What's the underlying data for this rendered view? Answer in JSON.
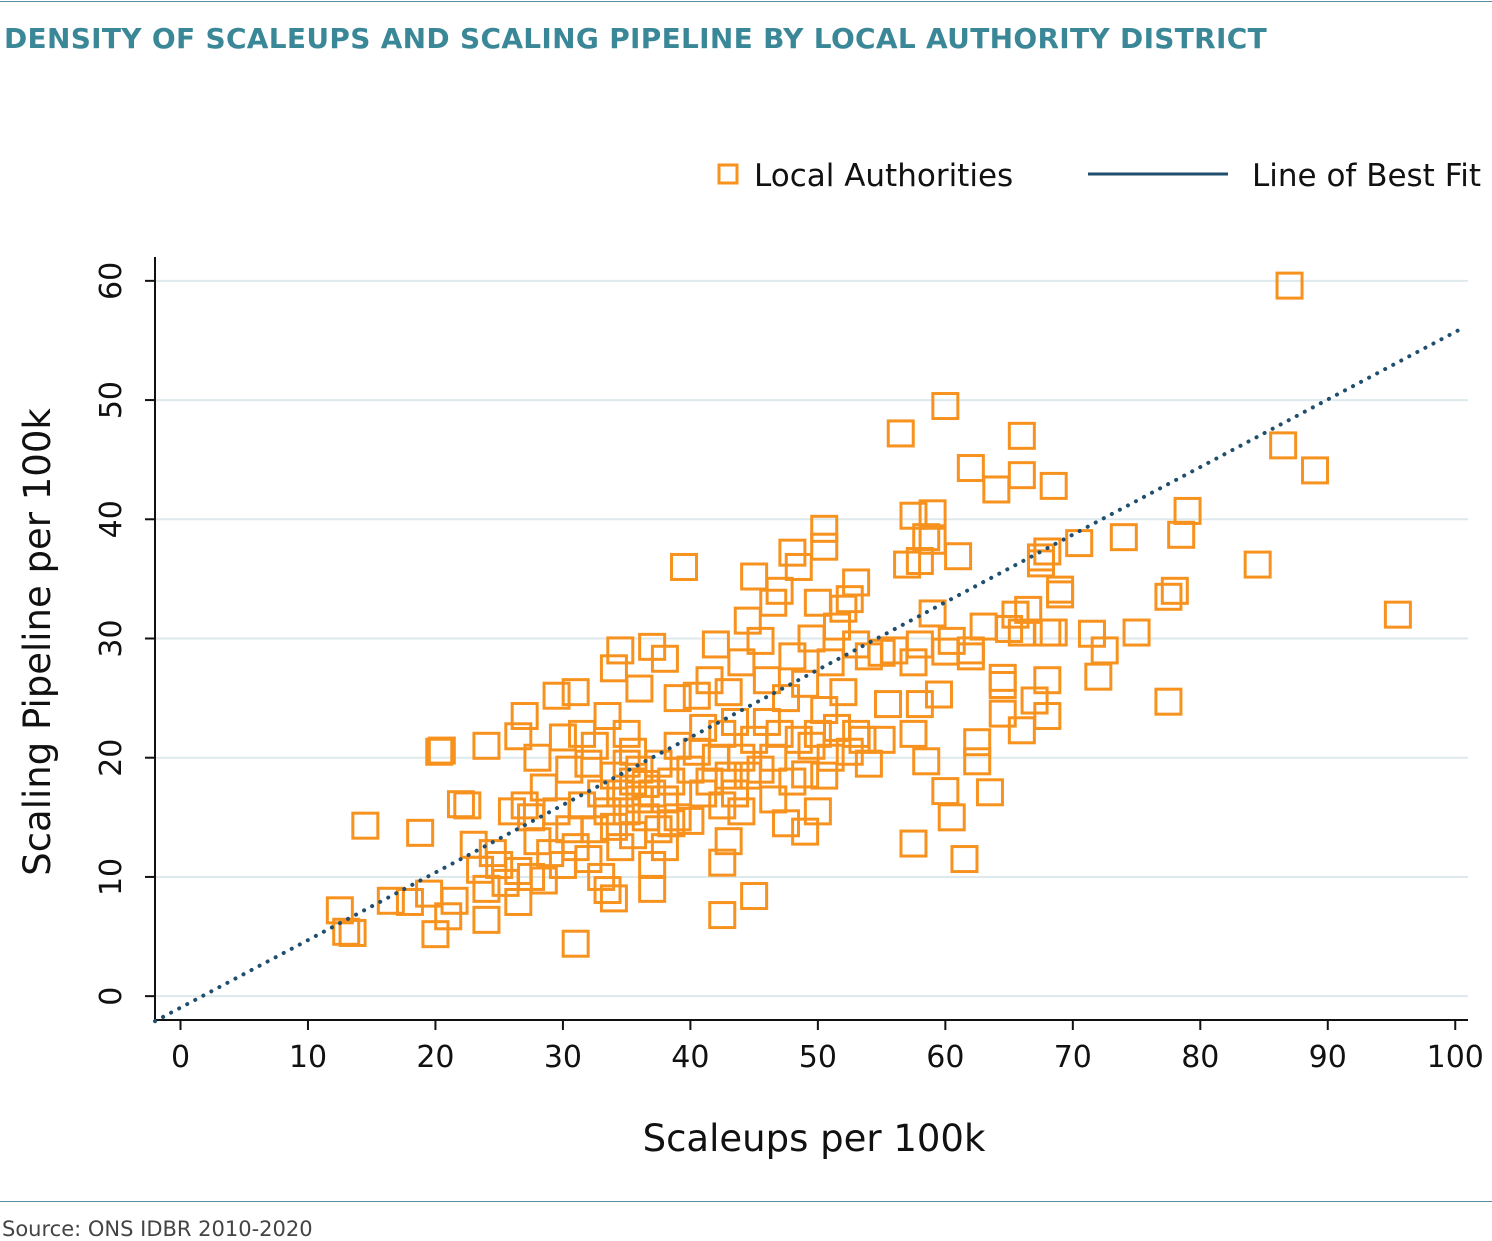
{
  "header": {
    "title": "DENSITY OF SCALEUPS AND SCALING PIPELINE BY LOCAL AUTHORITY DISTRICT"
  },
  "footer": {
    "source": "Source: ONS IDBR 2010-2020"
  },
  "colors": {
    "title": "#3a8797",
    "marker": "#f7921e",
    "fit_line": "#1f4e6e",
    "grid": "#dde9ec",
    "rule": "#5a8fa0"
  },
  "chart_data": {
    "type": "scatter",
    "xlabel": "Scaleups per 100k",
    "ylabel": "Scaling Pipeline per 100k",
    "xlim": [
      -2,
      101
    ],
    "ylim": [
      -2,
      62
    ],
    "xticks": [
      0,
      10,
      20,
      30,
      40,
      50,
      60,
      70,
      80,
      90,
      100
    ],
    "yticks": [
      0,
      10,
      20,
      30,
      40,
      50,
      60
    ],
    "grid": "horizontal",
    "legend": {
      "placement": "top-right",
      "entries": [
        {
          "label": "Local Authorities",
          "marker": "hollow-square"
        },
        {
          "label": "Line of Best Fit",
          "marker": "line"
        }
      ]
    },
    "fit_line": {
      "x": [
        -2,
        100.5
      ],
      "y": [
        -2.1,
        56.0
      ]
    },
    "series": [
      {
        "name": "Local Authorities",
        "points": [
          [
            12.5,
            7.2
          ],
          [
            13.0,
            5.4
          ],
          [
            13.5,
            5.3
          ],
          [
            14.5,
            14.3
          ],
          [
            16.5,
            8.0
          ],
          [
            18.0,
            7.9
          ],
          [
            18.8,
            13.7
          ],
          [
            19.5,
            8.6
          ],
          [
            20.0,
            5.2
          ],
          [
            20.3,
            20.5
          ],
          [
            20.5,
            20.6
          ],
          [
            21.0,
            6.7
          ],
          [
            21.5,
            8.0
          ],
          [
            22.0,
            16.1
          ],
          [
            22.5,
            16.0
          ],
          [
            23.0,
            12.7
          ],
          [
            23.5,
            10.6
          ],
          [
            24.0,
            6.4
          ],
          [
            24.0,
            9.0
          ],
          [
            24.0,
            21.0
          ],
          [
            24.5,
            12.0
          ],
          [
            25.0,
            11.0
          ],
          [
            25.5,
            9.5
          ],
          [
            26.0,
            15.5
          ],
          [
            26.5,
            7.9
          ],
          [
            26.5,
            10.5
          ],
          [
            26.5,
            21.8
          ],
          [
            27.0,
            16.0
          ],
          [
            27.0,
            23.5
          ],
          [
            27.5,
            10.0
          ],
          [
            27.5,
            15.0
          ],
          [
            28.0,
            13.0
          ],
          [
            28.0,
            20.0
          ],
          [
            28.5,
            9.7
          ],
          [
            28.5,
            17.5
          ],
          [
            29.0,
            12.0
          ],
          [
            29.5,
            15.5
          ],
          [
            29.5,
            25.2
          ],
          [
            30.0,
            11.0
          ],
          [
            30.0,
            21.7
          ],
          [
            30.5,
            14.0
          ],
          [
            30.5,
            19.0
          ],
          [
            31.0,
            12.5
          ],
          [
            31.0,
            25.5
          ],
          [
            31.0,
            4.4
          ],
          [
            31.5,
            16.0
          ],
          [
            31.5,
            22.0
          ],
          [
            32.0,
            11.5
          ],
          [
            32.0,
            19.5
          ],
          [
            32.5,
            14.0
          ],
          [
            32.5,
            21.0
          ],
          [
            33.0,
            10.0
          ],
          [
            33.0,
            17.0
          ],
          [
            33.5,
            8.9
          ],
          [
            33.5,
            15.5
          ],
          [
            33.5,
            23.5
          ],
          [
            34.0,
            8.2
          ],
          [
            34.0,
            14.2
          ],
          [
            34.0,
            18.5
          ],
          [
            34.0,
            27.5
          ],
          [
            34.5,
            12.5
          ],
          [
            34.5,
            17.0
          ],
          [
            34.5,
            29.0
          ],
          [
            35.0,
            15.5
          ],
          [
            35.0,
            19.5
          ],
          [
            35.0,
            22.0
          ],
          [
            35.5,
            13.5
          ],
          [
            35.5,
            18.0
          ],
          [
            35.5,
            20.5
          ],
          [
            36.0,
            16.5
          ],
          [
            36.0,
            19.0
          ],
          [
            36.0,
            25.8
          ],
          [
            36.5,
            15.0
          ],
          [
            36.5,
            17.8
          ],
          [
            37.0,
            9.0
          ],
          [
            37.0,
            11.0
          ],
          [
            37.0,
            17.0
          ],
          [
            37.0,
            29.3
          ],
          [
            37.5,
            14.0
          ],
          [
            37.5,
            19.5
          ],
          [
            38.0,
            12.5
          ],
          [
            38.0,
            16.5
          ],
          [
            38.0,
            28.3
          ],
          [
            38.5,
            14.5
          ],
          [
            38.5,
            18.0
          ],
          [
            39.0,
            15.0
          ],
          [
            39.0,
            21.0
          ],
          [
            39.0,
            25.0
          ],
          [
            39.5,
            36.0
          ],
          [
            40.0,
            14.7
          ],
          [
            40.0,
            19.0
          ],
          [
            40.5,
            20.5
          ],
          [
            40.5,
            25.2
          ],
          [
            41.0,
            17.0
          ],
          [
            41.0,
            22.5
          ],
          [
            41.5,
            18.0
          ],
          [
            41.5,
            26.5
          ],
          [
            42.0,
            20.0
          ],
          [
            42.0,
            29.5
          ],
          [
            42.5,
            6.8
          ],
          [
            42.5,
            11.2
          ],
          [
            42.5,
            16.0
          ],
          [
            42.5,
            22.0
          ],
          [
            43.0,
            13.0
          ],
          [
            43.0,
            18.5
          ],
          [
            43.0,
            25.5
          ],
          [
            43.5,
            17.0
          ],
          [
            43.5,
            23.0
          ],
          [
            44.0,
            15.5
          ],
          [
            44.0,
            20.0
          ],
          [
            44.0,
            28.0
          ],
          [
            44.5,
            18.5
          ],
          [
            44.5,
            31.5
          ],
          [
            45.0,
            8.4
          ],
          [
            45.0,
            21.5
          ],
          [
            45.0,
            35.2
          ],
          [
            45.5,
            19.0
          ],
          [
            45.5,
            29.8
          ],
          [
            46.0,
            23.0
          ],
          [
            46.0,
            26.5
          ],
          [
            46.5,
            16.5
          ],
          [
            46.5,
            20.0
          ],
          [
            46.5,
            33.0
          ],
          [
            47.0,
            22.0
          ],
          [
            47.0,
            34.0
          ],
          [
            47.5,
            14.5
          ],
          [
            47.5,
            25.0
          ],
          [
            48.0,
            18.0
          ],
          [
            48.0,
            28.5
          ],
          [
            48.0,
            37.2
          ],
          [
            48.5,
            21.5
          ],
          [
            48.5,
            36.0
          ],
          [
            49.0,
            13.8
          ],
          [
            49.0,
            18.6
          ],
          [
            49.0,
            26.2
          ],
          [
            49.5,
            21.0
          ],
          [
            49.5,
            30.0
          ],
          [
            50.0,
            15.5
          ],
          [
            50.0,
            22.0
          ],
          [
            50.0,
            33.0
          ],
          [
            50.5,
            18.5
          ],
          [
            50.5,
            24.0
          ],
          [
            50.5,
            37.7
          ],
          [
            50.5,
            39.2
          ],
          [
            51.0,
            20.0
          ],
          [
            51.0,
            28.0
          ],
          [
            51.5,
            22.5
          ],
          [
            51.5,
            31.0
          ],
          [
            52.0,
            25.5
          ],
          [
            52.0,
            32.5
          ],
          [
            52.5,
            20.5
          ],
          [
            52.5,
            33.3
          ],
          [
            53.0,
            22.0
          ],
          [
            53.0,
            29.5
          ],
          [
            53.0,
            34.7
          ],
          [
            53.5,
            21.5
          ],
          [
            54.0,
            19.5
          ],
          [
            54.0,
            28.5
          ],
          [
            55.0,
            21.5
          ],
          [
            55.0,
            28.8
          ],
          [
            55.5,
            24.5
          ],
          [
            56.0,
            29.0
          ],
          [
            56.5,
            47.2
          ],
          [
            57.0,
            36.2
          ],
          [
            57.5,
            12.8
          ],
          [
            57.5,
            22.0
          ],
          [
            57.5,
            28.0
          ],
          [
            57.5,
            40.3
          ],
          [
            58.0,
            24.5
          ],
          [
            58.0,
            29.5
          ],
          [
            58.0,
            36.5
          ],
          [
            58.5,
            19.7
          ],
          [
            58.5,
            38.5
          ],
          [
            59.0,
            32.1
          ],
          [
            59.0,
            38.2
          ],
          [
            59.0,
            40.5
          ],
          [
            59.5,
            25.3
          ],
          [
            60.0,
            17.2
          ],
          [
            60.0,
            28.9
          ],
          [
            60.0,
            49.5
          ],
          [
            60.5,
            15.0
          ],
          [
            60.5,
            29.8
          ],
          [
            61.0,
            36.9
          ],
          [
            61.5,
            11.5
          ],
          [
            62.0,
            28.5
          ],
          [
            62.0,
            29.0
          ],
          [
            62.0,
            44.3
          ],
          [
            62.5,
            19.7
          ],
          [
            62.5,
            21.3
          ],
          [
            63.0,
            31.0
          ],
          [
            63.5,
            17.1
          ],
          [
            64.0,
            42.5
          ],
          [
            64.5,
            23.7
          ],
          [
            64.5,
            26.1
          ],
          [
            64.5,
            26.7
          ],
          [
            65.0,
            30.8
          ],
          [
            65.5,
            32.0
          ],
          [
            66.0,
            22.3
          ],
          [
            66.0,
            30.5
          ],
          [
            66.0,
            43.7
          ],
          [
            66.0,
            47.0
          ],
          [
            66.5,
            32.4
          ],
          [
            67.0,
            24.8
          ],
          [
            67.5,
            36.3
          ],
          [
            67.5,
            36.8
          ],
          [
            68.0,
            23.5
          ],
          [
            68.0,
            26.5
          ],
          [
            68.0,
            30.5
          ],
          [
            68.0,
            37.3
          ],
          [
            68.5,
            30.5
          ],
          [
            68.5,
            42.8
          ],
          [
            69.0,
            33.7
          ],
          [
            69.0,
            34.1
          ],
          [
            70.5,
            38.0
          ],
          [
            71.5,
            30.4
          ],
          [
            72.0,
            26.8
          ],
          [
            72.5,
            29.0
          ],
          [
            74.0,
            38.5
          ],
          [
            75.0,
            30.5
          ],
          [
            77.5,
            33.5
          ],
          [
            77.5,
            24.7
          ],
          [
            78.0,
            34.0
          ],
          [
            78.5,
            38.7
          ],
          [
            79.0,
            40.7
          ],
          [
            84.5,
            36.2
          ],
          [
            86.5,
            46.2
          ],
          [
            87.0,
            59.6
          ],
          [
            89.0,
            44.1
          ],
          [
            95.5,
            32.0
          ]
        ]
      }
    ]
  }
}
